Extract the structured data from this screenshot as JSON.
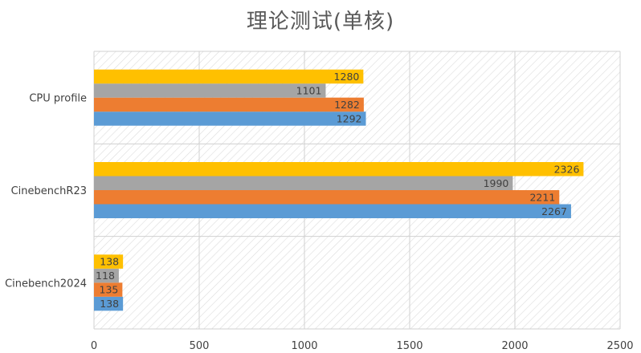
{
  "chart_data": {
    "type": "bar",
    "orientation": "horizontal",
    "title": "理论测试(单核)",
    "categories": [
      "CPU profile",
      "CinebenchR23",
      "Cinebench2024"
    ],
    "series": [
      {
        "color": "#4472C4",
        "values": [
          1292,
          2267,
          138
        ],
        "display_color": "#5B9BD5"
      },
      {
        "color": "#ED7D31",
        "values": [
          1282,
          2211,
          135
        ]
      },
      {
        "color": "#A5A5A5",
        "values": [
          1101,
          1990,
          118
        ]
      },
      {
        "color": "#FFC000",
        "values": [
          1280,
          2326,
          138
        ]
      }
    ],
    "xlim": [
      0,
      2500
    ],
    "x_ticks": [
      "0",
      "500",
      "1000",
      "1500",
      "2000",
      "2500"
    ],
    "grid": true,
    "legend": "none",
    "data_labels": true
  }
}
